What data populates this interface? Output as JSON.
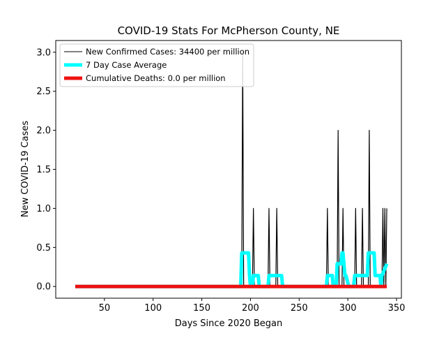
{
  "chart_data": {
    "type": "line",
    "title": "COVID-19 Stats For McPherson County, NE",
    "xlabel": "Days Since 2020 Began",
    "ylabel": "New COVID-19 Cases",
    "xlim": [
      0,
      355
    ],
    "ylim": [
      -0.15,
      3.15
    ],
    "xticks": [
      50,
      100,
      150,
      200,
      250,
      300,
      350
    ],
    "yticks": [
      0.0,
      0.5,
      1.0,
      1.5,
      2.0,
      2.5,
      3.0
    ],
    "xtick_labels": [
      "50",
      "100",
      "150",
      "200",
      "250",
      "300",
      "350"
    ],
    "ytick_labels": [
      "0.0",
      "0.5",
      "1.0",
      "1.5",
      "2.0",
      "2.5",
      "3.0"
    ],
    "grid": false,
    "legend_position": "top-left",
    "series": [
      {
        "name": "New Confirmed Cases: 34400 per million",
        "color": "#000000",
        "style": "thin-line",
        "x": [
          20,
          191,
          192,
          193,
          202,
          203,
          204,
          218,
          219,
          220,
          226,
          227,
          228,
          278,
          279,
          280,
          289,
          290,
          291,
          294,
          295,
          296,
          307,
          308,
          309,
          314,
          315,
          316,
          321,
          322,
          323,
          335,
          336,
          337,
          338,
          339,
          340
        ],
        "y": [
          0,
          0,
          3,
          0,
          0,
          1,
          0,
          0,
          1,
          0,
          0,
          1,
          0,
          0,
          1,
          0,
          0,
          2,
          0,
          0,
          1,
          0,
          0,
          1,
          0,
          0,
          1,
          0,
          0,
          2,
          0,
          0,
          1,
          0,
          1,
          0,
          1
        ]
      },
      {
        "name": "7 Day Case Average",
        "color": "#00ffff",
        "style": "thick-line",
        "x": [
          20,
          190,
          191,
          192,
          198,
          199,
          200,
          202,
          203,
          208,
          209,
          210,
          218,
          219,
          225,
          226,
          232,
          233,
          234,
          277,
          278,
          279,
          284,
          285,
          288,
          289,
          293,
          294,
          295,
          297,
          298,
          301,
          302,
          306,
          307,
          313,
          314,
          320,
          321,
          327,
          328,
          333,
          334,
          335,
          340
        ],
        "y": [
          0,
          0,
          0.43,
          0.43,
          0.43,
          0.14,
          0,
          0,
          0.14,
          0.14,
          0,
          0,
          0,
          0.14,
          0.14,
          0.14,
          0.14,
          0,
          0,
          0,
          0,
          0.14,
          0.14,
          0,
          0,
          0.29,
          0.29,
          0.43,
          0.43,
          0.14,
          0.14,
          0,
          0,
          0,
          0.14,
          0.14,
          0.14,
          0.14,
          0.43,
          0.43,
          0.14,
          0.14,
          0,
          0.14,
          0.29
        ]
      },
      {
        "name": "Cumulative Deaths: 0.0 per million",
        "color": "#ee1111",
        "style": "thick-line",
        "x": [
          20,
          340
        ],
        "y": [
          0,
          0
        ]
      }
    ]
  }
}
